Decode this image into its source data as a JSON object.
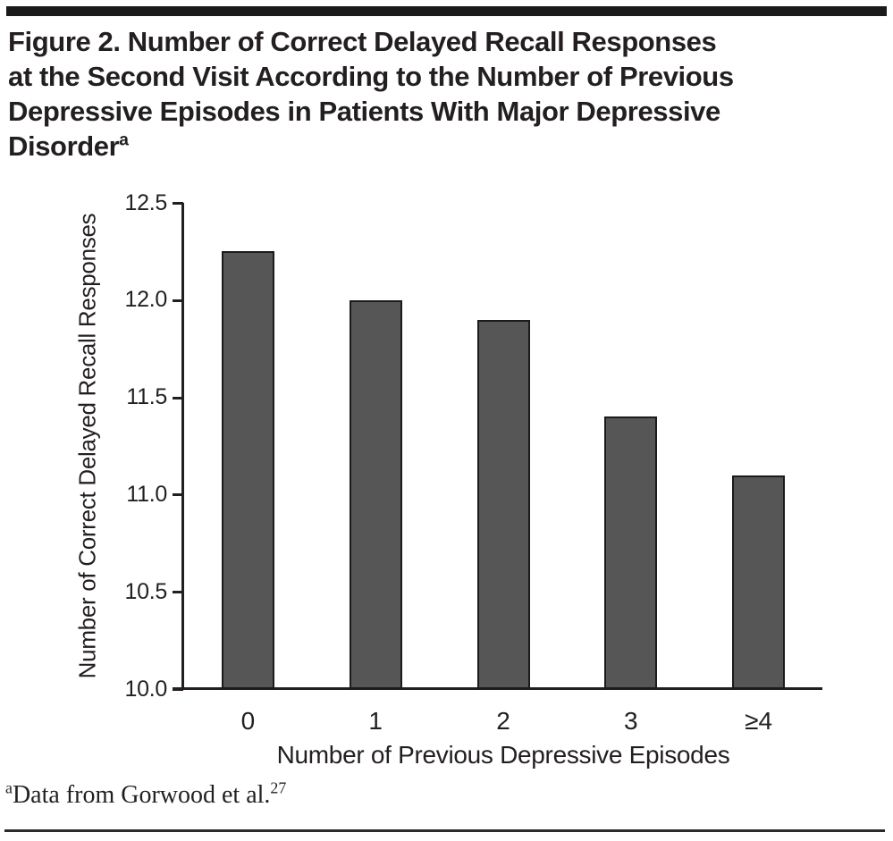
{
  "header": {
    "title_lines": [
      "Figure 2. Number of Correct Delayed Recall Responses",
      "at the Second Visit According to the Number of Previous",
      "Depressive Episodes in Patients With Major Depressive",
      "Disorder"
    ],
    "title_superscript": "a"
  },
  "chart_data": {
    "type": "bar",
    "categories": [
      "0",
      "1",
      "2",
      "3",
      "≥4"
    ],
    "values": [
      12.25,
      12.0,
      11.9,
      11.4,
      11.1
    ],
    "title": "",
    "xlabel": "Number of Previous Depressive Episodes",
    "ylabel": "Number of Correct Delayed Recall Responses",
    "ylim": [
      10.0,
      12.5
    ],
    "ytick_step": 0.5,
    "ytick_labels": [
      "10.0",
      "10.5",
      "11.0",
      "11.5",
      "12.0",
      "12.5"
    ],
    "grid": false,
    "legend": null,
    "bar_color": "#565656",
    "bar_border_color": "#1b1b1b",
    "axis_color": "#231f20"
  },
  "footnote": {
    "superscript": "a",
    "text": "Data from Gorwood et al.",
    "reference_superscript": "27"
  },
  "colors": {
    "text": "#231f20",
    "top_rule": "#1a1a1a",
    "bottom_rule": "#2a2a2a",
    "background": "#ffffff"
  }
}
